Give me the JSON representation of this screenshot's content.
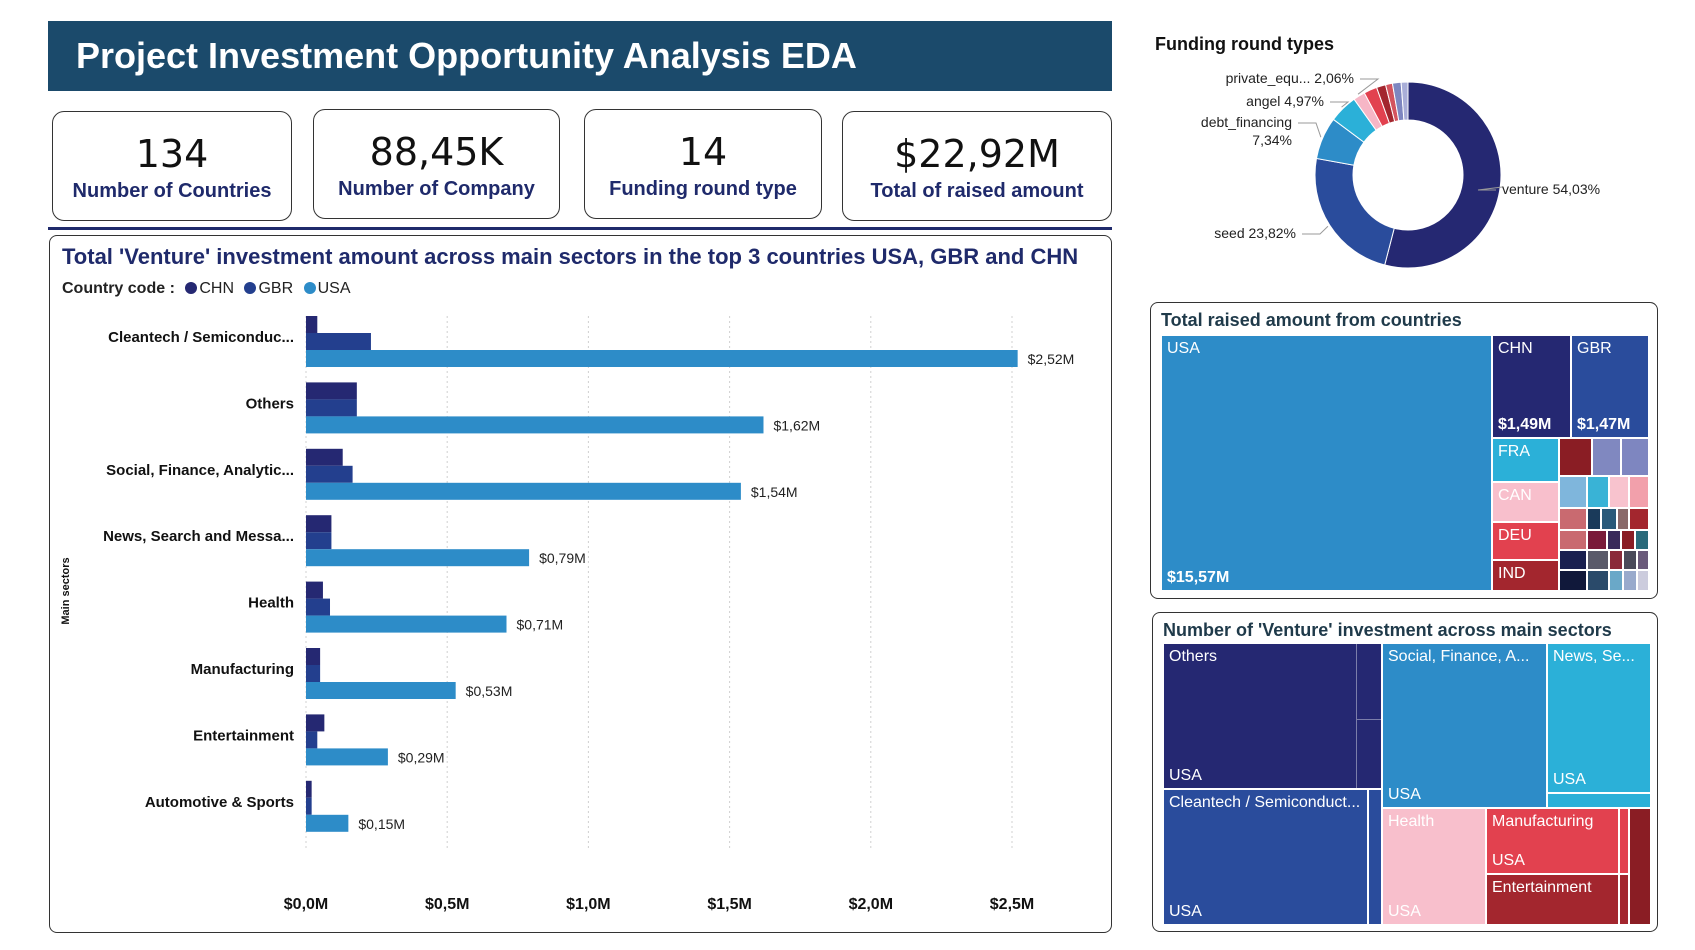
{
  "header": {
    "title": "Project Investment Opportunity Analysis EDA"
  },
  "kpis": [
    {
      "value": "134",
      "label": "Number of Countries"
    },
    {
      "value": "88,45K",
      "label": "Number of Company"
    },
    {
      "value": "14",
      "label": "Funding round type"
    },
    {
      "value": "$22,92M",
      "label": "Total of raised amount"
    }
  ],
  "bar_panel": {
    "title": "Total 'Venture' investment amount across main sectors in the top 3 countries USA, GBR and CHN",
    "legend_title": "Country code :",
    "y_axis_title": "Main sectors"
  },
  "donut_panel": {
    "title": "Funding round types"
  },
  "countries_panel": {
    "title": "Total raised amount from countries",
    "tiles": {
      "usa": {
        "label": "USA",
        "value": "$15,57M"
      },
      "chn": {
        "label": "CHN",
        "value": "$1,49M"
      },
      "gbr": {
        "label": "GBR",
        "value": "$1,47M"
      },
      "fra": {
        "label": "FRA"
      },
      "can": {
        "label": "CAN"
      },
      "deu": {
        "label": "DEU"
      },
      "ind": {
        "label": "IND"
      }
    }
  },
  "sectors_panel": {
    "title": "Number of 'Venture' investment across main sectors",
    "tiles": {
      "others": {
        "label": "Others",
        "sub": "USA"
      },
      "social": {
        "label": "Social, Finance, A...",
        "sub": "USA"
      },
      "news": {
        "label": "News, Se...",
        "sub": "USA"
      },
      "cleantech": {
        "label": "Cleantech / Semiconduct...",
        "sub": "USA"
      },
      "health": {
        "label": "Health",
        "sub": "USA"
      },
      "manufacturing": {
        "label": "Manufacturing",
        "sub": "USA"
      },
      "entertainment": {
        "label": "Entertainment"
      }
    }
  },
  "colors": {
    "CHN": "#252872",
    "GBR": "#233f8e",
    "USA": "#2d8cc8"
  },
  "chart_data": [
    {
      "type": "bar",
      "orientation": "horizontal",
      "categories": [
        "Cleantech / Semiconduc...",
        "Others",
        "Social, Finance, Analytic...",
        "News, Search and Messa...",
        "Health",
        "Manufacturing",
        "Entertainment",
        "Automotive & Sports"
      ],
      "series": [
        {
          "name": "CHN",
          "values": [
            0.04,
            0.18,
            0.13,
            0.09,
            0.06,
            0.05,
            0.065,
            0.02
          ]
        },
        {
          "name": "GBR",
          "values": [
            0.23,
            0.18,
            0.165,
            0.09,
            0.085,
            0.05,
            0.04,
            0.02
          ]
        },
        {
          "name": "USA",
          "values": [
            2.52,
            1.62,
            1.54,
            0.79,
            0.71,
            0.53,
            0.29,
            0.15
          ]
        }
      ],
      "usa_labels": [
        "$2,52M",
        "$1,62M",
        "$1,54M",
        "$0,79M",
        "$0,71M",
        "$0,53M",
        "$0,29M",
        "$0,15M"
      ],
      "x_ticks": [
        "$0,0M",
        "$0,5M",
        "$1,0M",
        "$1,5M",
        "$2,0M",
        "$2,5M"
      ],
      "xlim": [
        0,
        2.75
      ],
      "ylabel": "Main sectors",
      "legend": "top-left",
      "grid": "vertical dotted"
    },
    {
      "type": "pie",
      "style": "donut",
      "slices": [
        {
          "name": "venture",
          "value": 54.03,
          "label": "venture 54,03%",
          "color": "#252872"
        },
        {
          "name": "seed",
          "value": 23.82,
          "label": "seed 23,82%",
          "color": "#2a4c9c"
        },
        {
          "name": "debt_financing",
          "value": 7.34,
          "label": "debt_financing|7,34%",
          "color": "#2d8cc8"
        },
        {
          "name": "angel",
          "value": 4.97,
          "label": "angel 4,97%",
          "color": "#2bb0d8"
        },
        {
          "name": "private_equity",
          "value": 2.06,
          "label": "private_equ... 2,06%",
          "color": "#f6b6c6"
        },
        {
          "name": "other1",
          "value": 2.3,
          "label": "",
          "color": "#e2414f"
        },
        {
          "name": "other2",
          "value": 1.6,
          "label": "",
          "color": "#a3262e"
        },
        {
          "name": "other3",
          "value": 1.2,
          "label": "",
          "color": "#d4535e"
        },
        {
          "name": "other4",
          "value": 1.5,
          "label": "",
          "color": "#7e86c0"
        },
        {
          "name": "other5",
          "value": 1.18,
          "label": "",
          "color": "#a9aed8"
        }
      ]
    }
  ]
}
